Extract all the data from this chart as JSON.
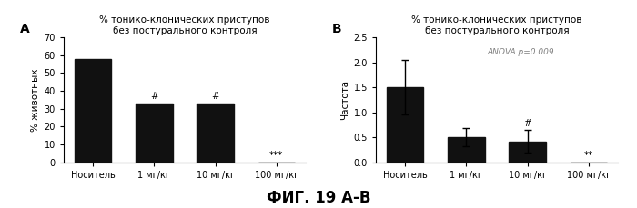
{
  "panel_A": {
    "label": "A",
    "title": "% тонико-клонических приступов\nбез постурального контроля",
    "ylabel": "% животных",
    "categories": [
      "Носитель",
      "1 мг/кг",
      "10 мг/кг",
      "100 мг/кг"
    ],
    "values": [
      58,
      33,
      33,
      0
    ],
    "errors": [
      0,
      0,
      0,
      0
    ],
    "ylim": [
      0,
      70
    ],
    "yticks": [
      0,
      10,
      20,
      30,
      40,
      50,
      60,
      70
    ],
    "annotations": [
      "",
      "#",
      "#",
      "***"
    ],
    "bar_color": "#111111"
  },
  "panel_B": {
    "label": "B",
    "title": "% тонико-клонических приступов\nбез постурального контроля",
    "ylabel": "Частота",
    "categories": [
      "Носитель",
      "1 мг/кг",
      "10 мг/кг",
      "100 мг/кг"
    ],
    "values": [
      1.5,
      0.5,
      0.42,
      0
    ],
    "errors": [
      0.55,
      0.18,
      0.22,
      0
    ],
    "ylim": [
      0,
      2.5
    ],
    "yticks": [
      0,
      0.5,
      1.0,
      1.5,
      2.0,
      2.5
    ],
    "annotations": [
      "",
      "",
      "#",
      "**"
    ],
    "anova_text": "ANOVA p=0.009",
    "bar_color": "#111111"
  },
  "figure_label": "ФИГ. 19 А-В",
  "background_color": "#ffffff"
}
